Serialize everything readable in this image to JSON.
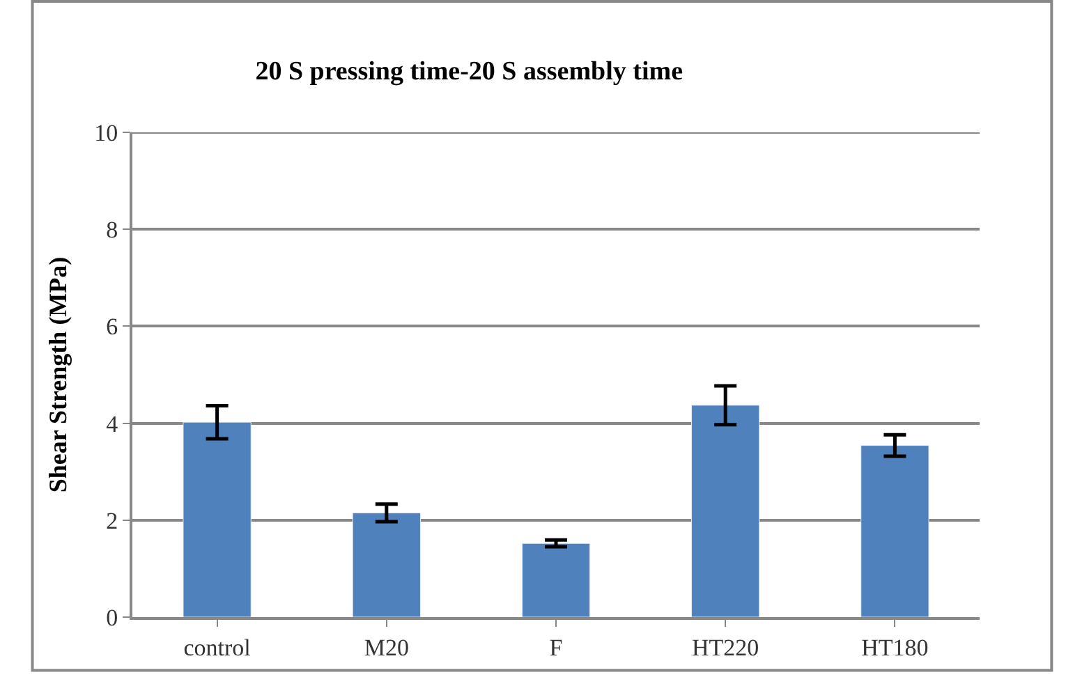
{
  "chart_data": {
    "type": "bar",
    "title": "20 S pressing time-20 S assembly time",
    "ylabel": "Shear Strength (MPa)",
    "categories": [
      "control",
      "M20",
      "F",
      "HT220",
      "HT180"
    ],
    "values": [
      4.02,
      2.15,
      1.52,
      4.37,
      3.54
    ],
    "errors": [
      0.34,
      0.18,
      0.07,
      0.4,
      0.22
    ],
    "color": "#4f81bd",
    "ylim": [
      0,
      10
    ],
    "yticks": [
      0,
      2,
      4,
      6,
      8,
      10
    ],
    "grid": "y"
  }
}
